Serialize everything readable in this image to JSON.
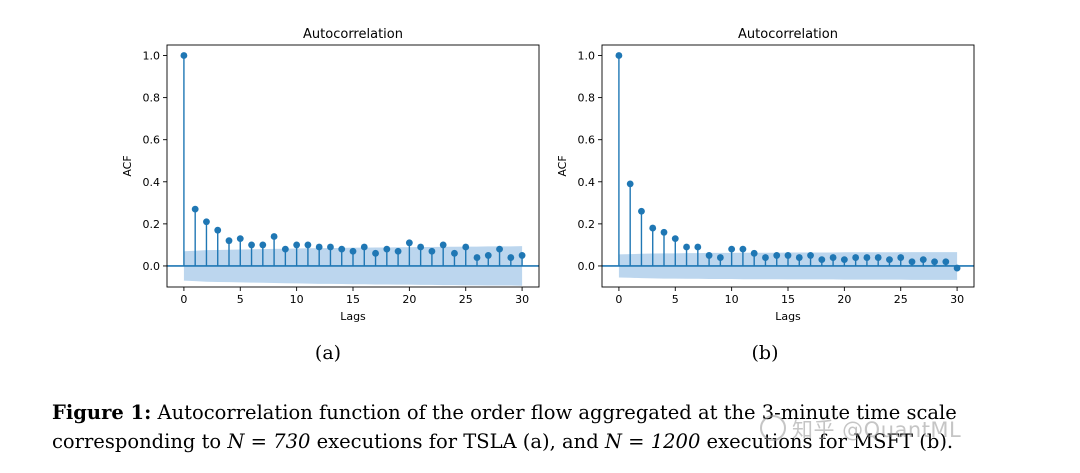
{
  "chart_data": [
    {
      "type": "stem",
      "title": "Autocorrelation",
      "xlabel": "Lags",
      "ylabel": "ACF",
      "xlim": [
        -1.5,
        31.5
      ],
      "ylim": [
        -0.1,
        1.05
      ],
      "xticks": [
        0,
        5,
        10,
        15,
        20,
        25,
        30
      ],
      "yticks": [
        "0.0",
        "0.2",
        "0.4",
        "0.6",
        "0.8",
        "1.0"
      ],
      "lags": [
        0,
        1,
        2,
        3,
        4,
        5,
        6,
        7,
        8,
        9,
        10,
        11,
        12,
        13,
        14,
        15,
        16,
        17,
        18,
        19,
        20,
        21,
        22,
        23,
        24,
        25,
        26,
        27,
        28,
        29,
        30
      ],
      "values": [
        1.0,
        0.27,
        0.21,
        0.17,
        0.12,
        0.13,
        0.1,
        0.1,
        0.14,
        0.08,
        0.1,
        0.1,
        0.09,
        0.09,
        0.08,
        0.07,
        0.09,
        0.06,
        0.08,
        0.07,
        0.11,
        0.09,
        0.07,
        0.1,
        0.06,
        0.09,
        0.04,
        0.05,
        0.08,
        0.04,
        0.05
      ],
      "confidence_upper": [
        0.07,
        0.072,
        0.075,
        0.076,
        0.077,
        0.078,
        0.079,
        0.08,
        0.081,
        0.082,
        0.083,
        0.084,
        0.085,
        0.085,
        0.086,
        0.087,
        0.087,
        0.088,
        0.088,
        0.089,
        0.089,
        0.09,
        0.09,
        0.091,
        0.091,
        0.092,
        0.092,
        0.093,
        0.093,
        0.093,
        0.094
      ],
      "sublabel": "(a)"
    },
    {
      "type": "stem",
      "title": "Autocorrelation",
      "xlabel": "Lags",
      "ylabel": "ACF",
      "xlim": [
        -1.5,
        31.5
      ],
      "ylim": [
        -0.1,
        1.05
      ],
      "xticks": [
        0,
        5,
        10,
        15,
        20,
        25,
        30
      ],
      "yticks": [
        "0.0",
        "0.2",
        "0.4",
        "0.6",
        "0.8",
        "1.0"
      ],
      "lags": [
        0,
        1,
        2,
        3,
        4,
        5,
        6,
        7,
        8,
        9,
        10,
        11,
        12,
        13,
        14,
        15,
        16,
        17,
        18,
        19,
        20,
        21,
        22,
        23,
        24,
        25,
        26,
        27,
        28,
        29,
        30
      ],
      "values": [
        1.0,
        0.39,
        0.26,
        0.18,
        0.16,
        0.13,
        0.09,
        0.09,
        0.05,
        0.04,
        0.08,
        0.08,
        0.06,
        0.04,
        0.05,
        0.05,
        0.04,
        0.05,
        0.03,
        0.04,
        0.03,
        0.04,
        0.04,
        0.04,
        0.03,
        0.04,
        0.02,
        0.03,
        0.02,
        0.02,
        -0.01
      ],
      "confidence_upper": [
        0.055,
        0.056,
        0.058,
        0.059,
        0.06,
        0.06,
        0.061,
        0.061,
        0.062,
        0.062,
        0.062,
        0.063,
        0.063,
        0.063,
        0.063,
        0.064,
        0.064,
        0.064,
        0.064,
        0.064,
        0.065,
        0.065,
        0.065,
        0.065,
        0.065,
        0.065,
        0.066,
        0.066,
        0.066,
        0.066,
        0.066
      ],
      "sublabel": "(b)"
    }
  ],
  "caption": {
    "label": "Figure 1:",
    "text_1": " Autocorrelation function of the order flow aggregated at the 3-minute time scale corresponding to ",
    "n_a": "N = 730",
    "text_2": " executions for TSLA (a), and ",
    "n_b": "N = 1200",
    "text_3": " executions for MSFT (b)."
  },
  "watermark": "知乎 @QuantML",
  "colors": {
    "stem": "#1f77b4",
    "band": "#a6c8e8",
    "zero_line": "#1f77b4",
    "axes": "#000000"
  }
}
